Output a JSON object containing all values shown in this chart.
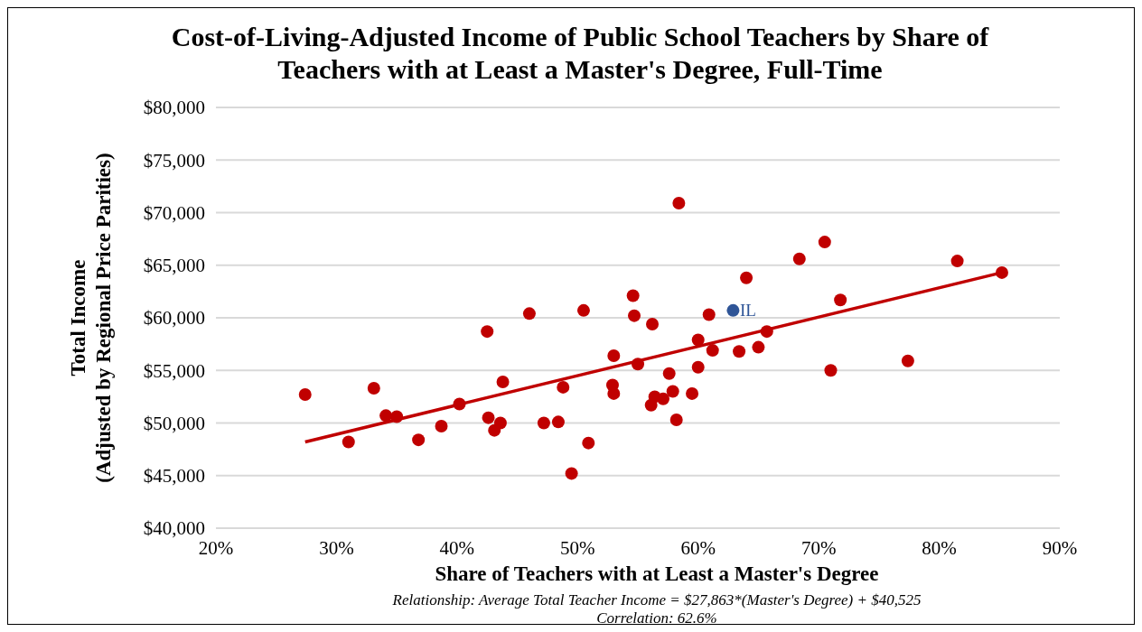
{
  "chart_data": {
    "type": "scatter",
    "title": "Cost-of-Living-Adjusted Income of Public School Teachers by Share of Teachers with at Least a Master's Degree, Full-Time",
    "xlabel": "Share of Teachers with at Least a Master's Degree",
    "ylabel": "Total Income\n(Adjusted by Regional Price Parities)",
    "xlim": [
      20,
      90
    ],
    "xticks": [
      {
        "value": 20,
        "label": "20%"
      },
      {
        "value": 30,
        "label": "30%"
      },
      {
        "value": 40,
        "label": "40%"
      },
      {
        "value": 50,
        "label": "50%"
      },
      {
        "value": 60,
        "label": "60%"
      },
      {
        "value": 70,
        "label": "70%"
      },
      {
        "value": 80,
        "label": "80%"
      },
      {
        "value": 90,
        "label": "90%"
      }
    ],
    "ylim": [
      40000,
      80000
    ],
    "yticks": [
      {
        "value": 40000,
        "label": "$40,000"
      },
      {
        "value": 45000,
        "label": "$45,000"
      },
      {
        "value": 50000,
        "label": "$50,000"
      },
      {
        "value": 55000,
        "label": "$55,000"
      },
      {
        "value": 60000,
        "label": "$60,000"
      },
      {
        "value": 65000,
        "label": "$65,000"
      },
      {
        "value": 70000,
        "label": "$70,000"
      },
      {
        "value": 75000,
        "label": "$75,000"
      },
      {
        "value": 80000,
        "label": "$80,000"
      }
    ],
    "grid": "y",
    "marker": "circle",
    "series": [
      {
        "type": "scatter",
        "color": "#c00000",
        "x": [
          27.4,
          31.0,
          33.1,
          34.1,
          35.0,
          36.8,
          38.7,
          40.2,
          42.5,
          42.6,
          43.1,
          43.6,
          43.8,
          46.0,
          47.2,
          48.4,
          48.8,
          49.5,
          50.5,
          50.9,
          53.0,
          52.9,
          53.0,
          54.6,
          54.7,
          55.0,
          56.1,
          56.2,
          56.4,
          57.1,
          57.6,
          57.9,
          58.4,
          58.2,
          59.5,
          60.0,
          60.0,
          60.9,
          61.2,
          63.4,
          64.0,
          65.0,
          65.7,
          68.4,
          70.5,
          71.0,
          71.8,
          77.4,
          81.5,
          85.2
        ],
        "values": [
          52700,
          48200,
          53300,
          50700,
          50600,
          48400,
          49700,
          51800,
          58700,
          50500,
          49300,
          50000,
          53900,
          60400,
          50000,
          50100,
          53400,
          45200,
          60700,
          48100,
          56400,
          53600,
          52800,
          62100,
          60200,
          55600,
          51700,
          59400,
          52500,
          52300,
          54700,
          53000,
          70900,
          50300,
          52800,
          55300,
          57900,
          60300,
          56900,
          56800,
          63800,
          57200,
          58700,
          65600,
          67200,
          55000,
          61700,
          55900,
          65400,
          64300
        ]
      },
      {
        "type": "scatter",
        "name": "IL",
        "color": "#2f5597",
        "x": [
          62.9
        ],
        "values": [
          60700
        ]
      },
      {
        "type": "line",
        "color": "#c00000",
        "line_style": "solid",
        "marker": "none",
        "x": [
          27.4,
          85.2
        ],
        "values": [
          48200,
          64300
        ]
      }
    ],
    "annotations": [
      "Relationship: Average Total Teacher Income = $27,863*(Master's Degree) + $40,525",
      "Correlation: 62.6%"
    ]
  }
}
